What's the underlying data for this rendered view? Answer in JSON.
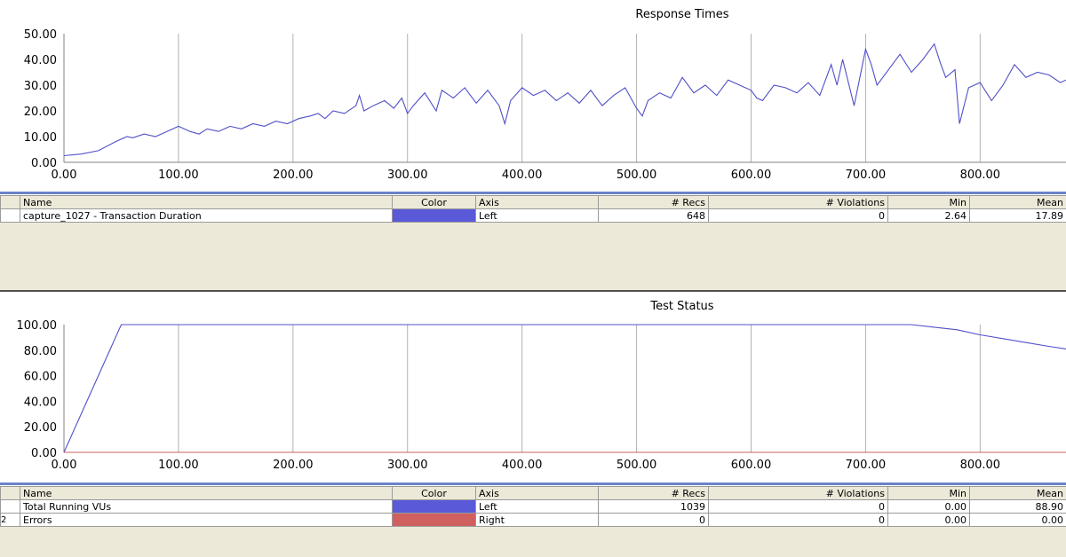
{
  "chart_data": [
    {
      "type": "line",
      "title": "Response Times",
      "xlim": [
        0,
        875
      ],
      "ylim": [
        0,
        50
      ],
      "x_ticks": [
        0,
        100,
        200,
        300,
        400,
        500,
        600,
        700,
        800
      ],
      "x_tick_labels": [
        "0.00",
        "100.00",
        "200.00",
        "300.00",
        "400.00",
        "500.00",
        "600.00",
        "700.00",
        "800.00"
      ],
      "y_ticks": [
        0,
        10,
        20,
        30,
        40,
        50
      ],
      "y_tick_labels": [
        "0.00",
        "10.00",
        "20.00",
        "30.00",
        "40.00",
        "50.00"
      ],
      "series": [
        {
          "name": "capture_1027 - Transaction Duration",
          "color": "#5050c8",
          "x": [
            0,
            15,
            30,
            45,
            55,
            60,
            70,
            80,
            90,
            100,
            105,
            110,
            118,
            125,
            135,
            145,
            155,
            165,
            175,
            185,
            195,
            205,
            215,
            222,
            228,
            235,
            245,
            255,
            258,
            262,
            270,
            280,
            288,
            295,
            300,
            305,
            315,
            325,
            330,
            340,
            350,
            360,
            370,
            380,
            385,
            390,
            400,
            410,
            420,
            430,
            440,
            450,
            460,
            470,
            480,
            490,
            500,
            505,
            510,
            520,
            530,
            540,
            550,
            560,
            570,
            580,
            590,
            600,
            605,
            610,
            620,
            630,
            640,
            650,
            660,
            670,
            675,
            680,
            690,
            700,
            705,
            710,
            720,
            730,
            740,
            750,
            760,
            765,
            770,
            778,
            782,
            790,
            800,
            810,
            820,
            830,
            840,
            850,
            860,
            870,
            875
          ],
          "y": [
            2.6,
            3.2,
            4.5,
            8,
            10,
            9.5,
            11,
            10,
            12,
            14,
            13,
            12,
            11,
            13,
            12,
            14,
            13,
            15,
            14,
            16,
            15,
            17,
            18,
            19,
            17,
            20,
            19,
            22,
            26,
            20,
            22,
            24,
            21,
            25,
            19,
            22,
            27,
            20,
            28,
            25,
            29,
            23,
            28,
            22,
            15,
            24,
            29,
            26,
            28,
            24,
            27,
            23,
            28,
            22,
            26,
            29,
            21,
            18,
            24,
            27,
            25,
            33,
            27,
            30,
            26,
            32,
            30,
            28,
            25,
            24,
            30,
            29,
            27,
            31,
            26,
            38,
            30,
            40,
            22,
            44,
            38,
            30,
            36,
            42,
            35,
            40,
            46,
            39,
            33,
            36,
            15,
            29,
            31,
            24,
            30,
            38,
            33,
            35,
            34,
            31,
            32
          ]
        }
      ]
    },
    {
      "type": "line",
      "title": "Test Status",
      "xlim": [
        0,
        875
      ],
      "ylim": [
        0,
        100
      ],
      "x_ticks": [
        0,
        100,
        200,
        300,
        400,
        500,
        600,
        700,
        800
      ],
      "x_tick_labels": [
        "0.00",
        "100.00",
        "200.00",
        "300.00",
        "400.00",
        "500.00",
        "600.00",
        "700.00",
        "800.00"
      ],
      "y_ticks": [
        0,
        20,
        40,
        60,
        80,
        100
      ],
      "y_tick_labels": [
        "0.00",
        "20.00",
        "40.00",
        "60.00",
        "80.00",
        "100.00"
      ],
      "series": [
        {
          "name": "Total Running VUs",
          "color": "#5050c8",
          "x": [
            0,
            50,
            740,
            760,
            780,
            800,
            820,
            840,
            860,
            875
          ],
          "y": [
            0,
            100,
            100,
            98,
            96,
            92,
            89,
            86,
            83,
            81
          ]
        },
        {
          "name": "Errors",
          "color": "#cc6060",
          "x": [
            0,
            875
          ],
          "y": [
            0,
            0
          ]
        }
      ]
    }
  ],
  "legend_top": {
    "headers": [
      "Name",
      "Color",
      "Axis",
      "# Recs",
      "# Violations",
      "Min",
      "Mean"
    ],
    "rows": [
      {
        "name": "capture_1027 - Transaction Duration",
        "color": "#5a5ad8",
        "axis": "Left",
        "recs": "648",
        "violations": "0",
        "min": "2.64",
        "mean": "17.89"
      }
    ]
  },
  "legend_bottom": {
    "headers": [
      "Name",
      "Color",
      "Axis",
      "# Recs",
      "# Violations",
      "Min",
      "Mean"
    ],
    "rows": [
      {
        "rownum": "",
        "name": "Total Running VUs",
        "color": "#5a5ad8",
        "axis": "Left",
        "recs": "1039",
        "violations": "0",
        "min": "0.00",
        "mean": "88.90"
      },
      {
        "rownum": "2",
        "name": "Errors",
        "color": "#d06060",
        "axis": "Right",
        "recs": "0",
        "violations": "0",
        "min": "0.00",
        "mean": "0.00"
      }
    ]
  }
}
